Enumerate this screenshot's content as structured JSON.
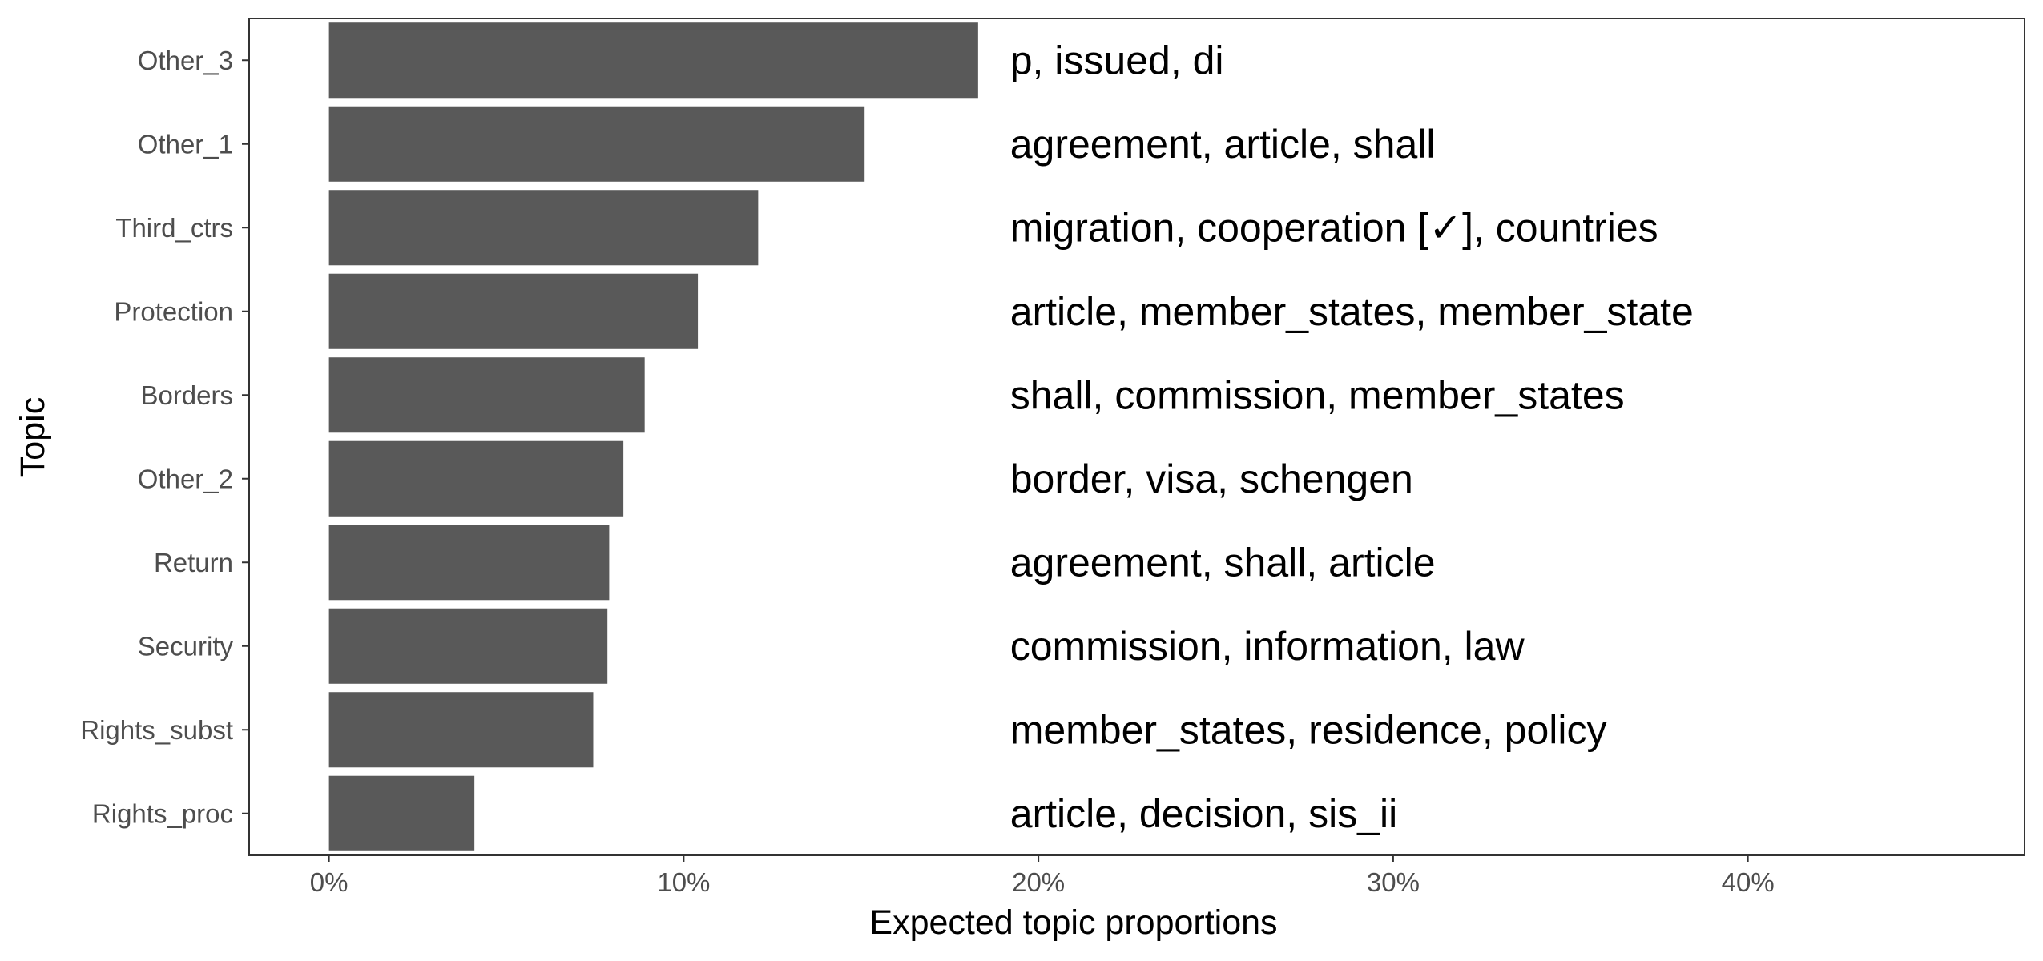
{
  "chart_data": {
    "type": "bar",
    "orientation": "horizontal",
    "xlabel": "Expected topic proportions",
    "ylabel": "Topic",
    "x_ticks": [
      "0%",
      "10%",
      "20%",
      "30%",
      "40%"
    ],
    "x_tick_values": [
      0,
      10,
      20,
      30,
      40
    ],
    "xlim": [
      -2.25,
      47.8
    ],
    "categories": [
      "Other_3",
      "Other_1",
      "Third_ctrs",
      "Protection",
      "Borders",
      "Other_2",
      "Return",
      "Security",
      "Rights_subst",
      "Rights_proc"
    ],
    "values": [
      18.3,
      15.1,
      12.1,
      10.4,
      8.9,
      8.3,
      7.9,
      7.85,
      7.45,
      4.1
    ],
    "bar_color": "#595959",
    "annotations": [
      "p, issued, di",
      "agreement, article, shall",
      "migration, cooperation [✓], countries",
      "article, member_states, member_state",
      "shall, commission, member_states",
      "border, visa, schengen",
      "agreement, shall, article",
      "commission, information, law",
      "member_states, residence, policy",
      "article, decision, sis_ii"
    ],
    "annotation_x": 19.2,
    "grid": false
  }
}
